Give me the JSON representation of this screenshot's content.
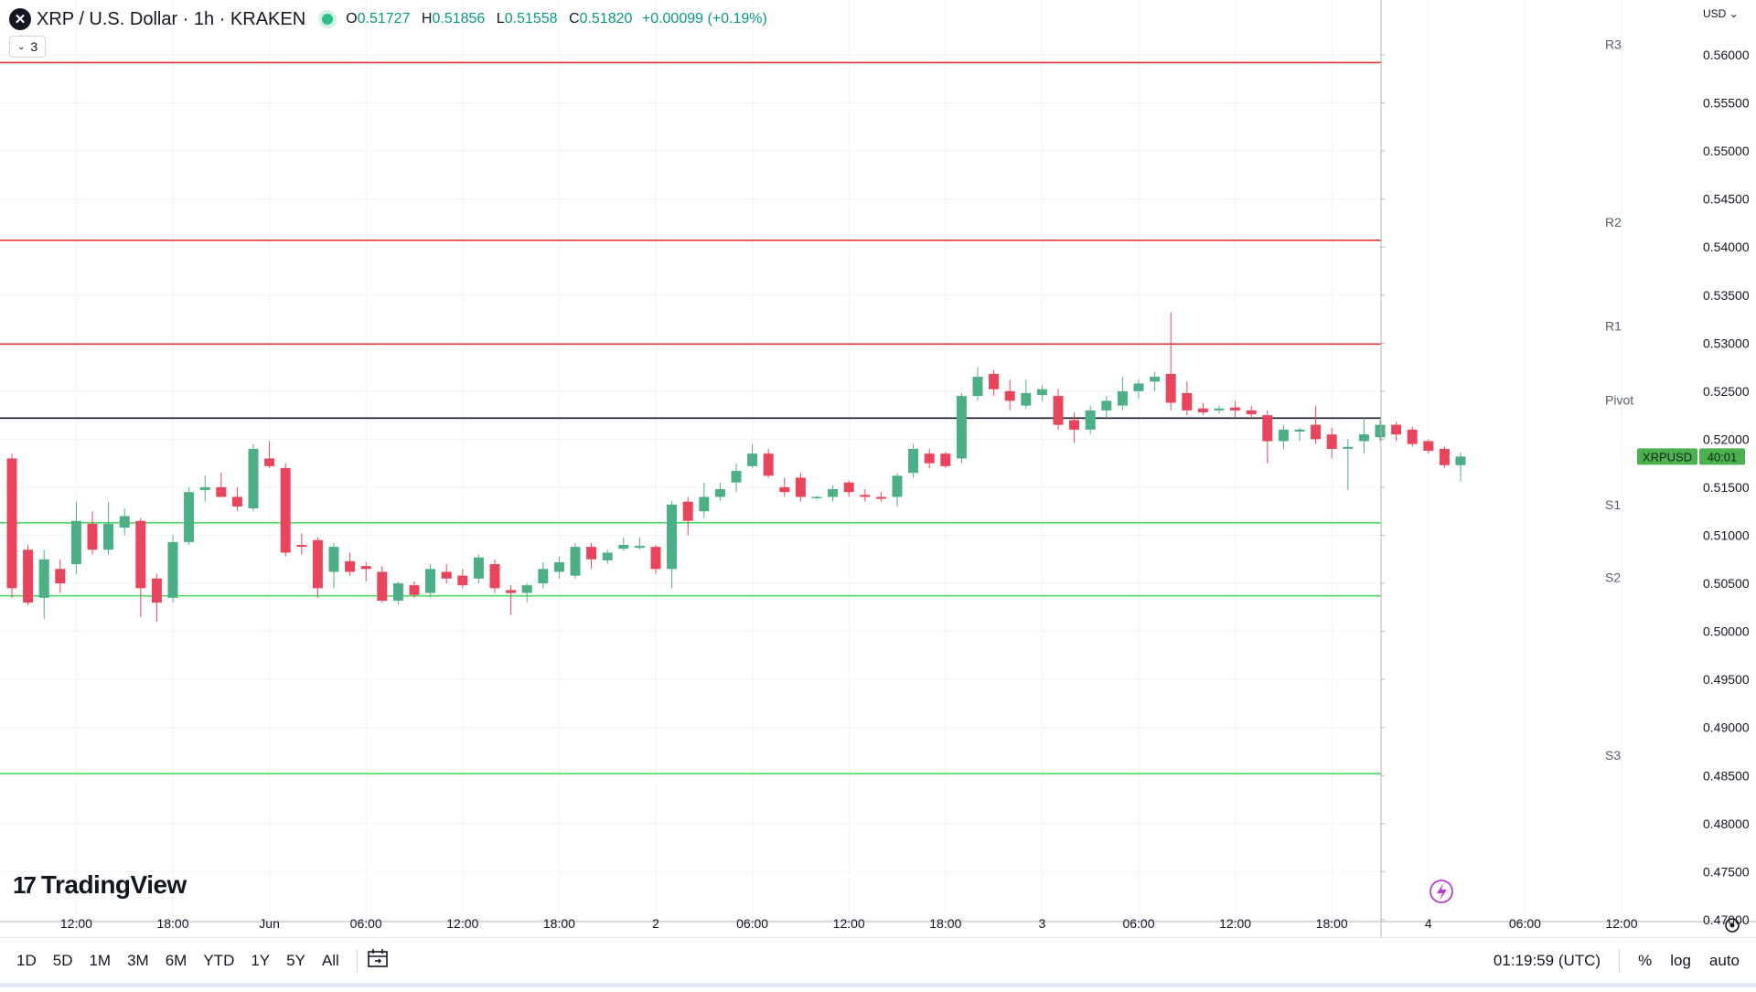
{
  "header": {
    "symbol_icon": "x-mark-icon",
    "title": "XRP / U.S. Dollar · 1h · KRAKEN",
    "open_label": "O",
    "open": "0.51727",
    "high_label": "H",
    "high": "0.51856",
    "low_label": "L",
    "low": "0.51558",
    "close_label": "C",
    "close": "0.51820",
    "change": "+0.00099 (+0.19%)",
    "indicators_count": "3"
  },
  "price_scale": {
    "currency": "USD"
  },
  "colors": {
    "up": "#4caf85",
    "down": "#e8455d",
    "resistance": "#e53935",
    "support": "#4cd964",
    "pivot": "#131722",
    "price_label_bg": "#4caf50",
    "grid": "#f0f3fa",
    "axis_text": "#131722"
  },
  "branding": {
    "logo_mark": "17",
    "logo_text": "TradingView"
  },
  "bottom_toolbar": {
    "timeframes": [
      "1D",
      "5D",
      "1M",
      "3M",
      "6M",
      "YTD",
      "1Y",
      "5Y",
      "All"
    ],
    "compare_icon": "calendar-range-icon",
    "clock": "01:19:59 (UTC)",
    "percent": "%",
    "log": "log",
    "auto": "auto"
  },
  "chart_data": {
    "type": "candlestick",
    "title": "XRP / U.S. Dollar · 1h · KRAKEN",
    "y_axis": {
      "ylim": [
        0.4698,
        0.56571
      ],
      "ticks": [
        "0.56000",
        "0.55500",
        "0.55000",
        "0.54500",
        "0.54000",
        "0.53500",
        "0.53000",
        "0.52500",
        "0.52000",
        "0.51500",
        "0.51000",
        "0.50500",
        "0.50000",
        "0.49500",
        "0.49000",
        "0.48500",
        "0.48000",
        "0.47500",
        "0.47000"
      ]
    },
    "x_axis": {
      "ticks": [
        {
          "label": "12:00",
          "bar": 4
        },
        {
          "label": "18:00",
          "bar": 10
        },
        {
          "label": "Jun",
          "bar": 16
        },
        {
          "label": "06:00",
          "bar": 22
        },
        {
          "label": "12:00",
          "bar": 28
        },
        {
          "label": "18:00",
          "bar": 34
        },
        {
          "label": "2",
          "bar": 40
        },
        {
          "label": "06:00",
          "bar": 46
        },
        {
          "label": "12:00",
          "bar": 52
        },
        {
          "label": "18:00",
          "bar": 58
        },
        {
          "label": "3",
          "bar": 64
        },
        {
          "label": "06:00",
          "bar": 70
        },
        {
          "label": "12:00",
          "bar": 76
        },
        {
          "label": "18:00",
          "bar": 82
        },
        {
          "label": "4",
          "bar": 88
        },
        {
          "label": "06:00",
          "bar": 94
        },
        {
          "label": "12:00",
          "bar": 100
        }
      ],
      "total_bars": 105
    },
    "levels": [
      {
        "name": "R3",
        "value": 0.5592,
        "kind": "resistance"
      },
      {
        "name": "R2",
        "value": 0.5407,
        "kind": "resistance"
      },
      {
        "name": "R1",
        "value": 0.5299,
        "kind": "resistance"
      },
      {
        "name": "Pivot",
        "value": 0.5222,
        "kind": "pivot"
      },
      {
        "name": "S1",
        "value": 0.5113,
        "kind": "support"
      },
      {
        "name": "S2",
        "value": 0.5037,
        "kind": "support"
      },
      {
        "name": "S3",
        "value": 0.4852,
        "kind": "support"
      }
    ],
    "candles": [
      {
        "o": 0.518,
        "h": 0.5185,
        "l": 0.5035,
        "c": 0.5045
      },
      {
        "o": 0.5085,
        "h": 0.509,
        "l": 0.5027,
        "c": 0.503
      },
      {
        "o": 0.5035,
        "h": 0.5085,
        "l": 0.5013,
        "c": 0.5075
      },
      {
        "o": 0.5065,
        "h": 0.5075,
        "l": 0.504,
        "c": 0.505
      },
      {
        "o": 0.507,
        "h": 0.5135,
        "l": 0.506,
        "c": 0.5115
      },
      {
        "o": 0.5112,
        "h": 0.5125,
        "l": 0.508,
        "c": 0.5085
      },
      {
        "o": 0.5085,
        "h": 0.5135,
        "l": 0.508,
        "c": 0.5112
      },
      {
        "o": 0.5108,
        "h": 0.5128,
        "l": 0.51,
        "c": 0.512
      },
      {
        "o": 0.5115,
        "h": 0.5118,
        "l": 0.5015,
        "c": 0.5045
      },
      {
        "o": 0.5055,
        "h": 0.506,
        "l": 0.501,
        "c": 0.503
      },
      {
        "o": 0.5035,
        "h": 0.51,
        "l": 0.503,
        "c": 0.5093
      },
      {
        "o": 0.5093,
        "h": 0.515,
        "l": 0.509,
        "c": 0.5145
      },
      {
        "o": 0.5147,
        "h": 0.5162,
        "l": 0.5135,
        "c": 0.515
      },
      {
        "o": 0.515,
        "h": 0.5165,
        "l": 0.514,
        "c": 0.514
      },
      {
        "o": 0.514,
        "h": 0.515,
        "l": 0.5125,
        "c": 0.513
      },
      {
        "o": 0.5128,
        "h": 0.5195,
        "l": 0.5125,
        "c": 0.519
      },
      {
        "o": 0.518,
        "h": 0.5198,
        "l": 0.517,
        "c": 0.5172
      },
      {
        "o": 0.517,
        "h": 0.5175,
        "l": 0.5078,
        "c": 0.5082
      },
      {
        "o": 0.509,
        "h": 0.5102,
        "l": 0.508,
        "c": 0.5088
      },
      {
        "o": 0.5095,
        "h": 0.5098,
        "l": 0.5035,
        "c": 0.5045
      },
      {
        "o": 0.5062,
        "h": 0.5092,
        "l": 0.5045,
        "c": 0.5088
      },
      {
        "o": 0.5073,
        "h": 0.5082,
        "l": 0.5058,
        "c": 0.5062
      },
      {
        "o": 0.5068,
        "h": 0.5072,
        "l": 0.5052,
        "c": 0.5065
      },
      {
        "o": 0.5062,
        "h": 0.5068,
        "l": 0.503,
        "c": 0.5032
      },
      {
        "o": 0.5032,
        "h": 0.5052,
        "l": 0.5028,
        "c": 0.505
      },
      {
        "o": 0.5048,
        "h": 0.5052,
        "l": 0.5035,
        "c": 0.5038
      },
      {
        "o": 0.504,
        "h": 0.507,
        "l": 0.5035,
        "c": 0.5065
      },
      {
        "o": 0.5062,
        "h": 0.507,
        "l": 0.505,
        "c": 0.5055
      },
      {
        "o": 0.5058,
        "h": 0.5065,
        "l": 0.5045,
        "c": 0.5048
      },
      {
        "o": 0.5055,
        "h": 0.508,
        "l": 0.505,
        "c": 0.5077
      },
      {
        "o": 0.507,
        "h": 0.5075,
        "l": 0.504,
        "c": 0.5045
      },
      {
        "o": 0.5043,
        "h": 0.5048,
        "l": 0.5017,
        "c": 0.504
      },
      {
        "o": 0.504,
        "h": 0.505,
        "l": 0.503,
        "c": 0.5048
      },
      {
        "o": 0.505,
        "h": 0.5072,
        "l": 0.5045,
        "c": 0.5065
      },
      {
        "o": 0.5062,
        "h": 0.5078,
        "l": 0.5055,
        "c": 0.5072
      },
      {
        "o": 0.5058,
        "h": 0.5092,
        "l": 0.5055,
        "c": 0.5088
      },
      {
        "o": 0.5088,
        "h": 0.5092,
        "l": 0.5065,
        "c": 0.5075
      },
      {
        "o": 0.5074,
        "h": 0.5085,
        "l": 0.507,
        "c": 0.5082
      },
      {
        "o": 0.5086,
        "h": 0.5098,
        "l": 0.5084,
        "c": 0.509
      },
      {
        "o": 0.5087,
        "h": 0.5098,
        "l": 0.5085,
        "c": 0.5089
      },
      {
        "o": 0.5088,
        "h": 0.509,
        "l": 0.506,
        "c": 0.5065
      },
      {
        "o": 0.5065,
        "h": 0.5136,
        "l": 0.5045,
        "c": 0.5132
      },
      {
        "o": 0.5135,
        "h": 0.514,
        "l": 0.51,
        "c": 0.5115
      },
      {
        "o": 0.5125,
        "h": 0.5155,
        "l": 0.5118,
        "c": 0.514
      },
      {
        "o": 0.514,
        "h": 0.5155,
        "l": 0.5136,
        "c": 0.5148
      },
      {
        "o": 0.5155,
        "h": 0.5175,
        "l": 0.5145,
        "c": 0.5167
      },
      {
        "o": 0.5172,
        "h": 0.5195,
        "l": 0.517,
        "c": 0.5185
      },
      {
        "o": 0.5185,
        "h": 0.519,
        "l": 0.516,
        "c": 0.5162
      },
      {
        "o": 0.515,
        "h": 0.516,
        "l": 0.514,
        "c": 0.5145
      },
      {
        "o": 0.516,
        "h": 0.5165,
        "l": 0.5135,
        "c": 0.514
      },
      {
        "o": 0.5139,
        "h": 0.5141,
        "l": 0.5137,
        "c": 0.514
      },
      {
        "o": 0.514,
        "h": 0.5152,
        "l": 0.5135,
        "c": 0.5148
      },
      {
        "o": 0.5155,
        "h": 0.5157,
        "l": 0.514,
        "c": 0.5145
      },
      {
        "o": 0.5142,
        "h": 0.5148,
        "l": 0.5135,
        "c": 0.514
      },
      {
        "o": 0.514,
        "h": 0.5145,
        "l": 0.5135,
        "c": 0.5138
      },
      {
        "o": 0.514,
        "h": 0.5165,
        "l": 0.513,
        "c": 0.5162
      },
      {
        "o": 0.5165,
        "h": 0.5195,
        "l": 0.516,
        "c": 0.519
      },
      {
        "o": 0.5185,
        "h": 0.519,
        "l": 0.517,
        "c": 0.5175
      },
      {
        "o": 0.5185,
        "h": 0.5187,
        "l": 0.517,
        "c": 0.5172
      },
      {
        "o": 0.518,
        "h": 0.5248,
        "l": 0.5175,
        "c": 0.5245
      },
      {
        "o": 0.5245,
        "h": 0.5275,
        "l": 0.524,
        "c": 0.5265
      },
      {
        "o": 0.5268,
        "h": 0.5272,
        "l": 0.5245,
        "c": 0.5252
      },
      {
        "o": 0.525,
        "h": 0.5262,
        "l": 0.523,
        "c": 0.524
      },
      {
        "o": 0.5235,
        "h": 0.5262,
        "l": 0.5232,
        "c": 0.5248
      },
      {
        "o": 0.5246,
        "h": 0.5256,
        "l": 0.524,
        "c": 0.5252
      },
      {
        "o": 0.5245,
        "h": 0.5252,
        "l": 0.521,
        "c": 0.5215
      },
      {
        "o": 0.522,
        "h": 0.5228,
        "l": 0.5196,
        "c": 0.521
      },
      {
        "o": 0.521,
        "h": 0.5235,
        "l": 0.5205,
        "c": 0.523
      },
      {
        "o": 0.523,
        "h": 0.5245,
        "l": 0.5222,
        "c": 0.524
      },
      {
        "o": 0.5235,
        "h": 0.5265,
        "l": 0.523,
        "c": 0.525
      },
      {
        "o": 0.525,
        "h": 0.5262,
        "l": 0.5242,
        "c": 0.5258
      },
      {
        "o": 0.526,
        "h": 0.527,
        "l": 0.525,
        "c": 0.5265
      },
      {
        "o": 0.5268,
        "h": 0.5332,
        "l": 0.523,
        "c": 0.5238
      },
      {
        "o": 0.5248,
        "h": 0.526,
        "l": 0.5225,
        "c": 0.523
      },
      {
        "o": 0.5232,
        "h": 0.5238,
        "l": 0.5225,
        "c": 0.5228
      },
      {
        "o": 0.523,
        "h": 0.5235,
        "l": 0.5227,
        "c": 0.5232
      },
      {
        "o": 0.5233,
        "h": 0.524,
        "l": 0.5222,
        "c": 0.523
      },
      {
        "o": 0.523,
        "h": 0.5235,
        "l": 0.5222,
        "c": 0.5226
      },
      {
        "o": 0.5225,
        "h": 0.523,
        "l": 0.5175,
        "c": 0.5198
      },
      {
        "o": 0.5198,
        "h": 0.5215,
        "l": 0.519,
        "c": 0.521
      },
      {
        "o": 0.5208,
        "h": 0.5212,
        "l": 0.5198,
        "c": 0.521
      },
      {
        "o": 0.5215,
        "h": 0.5235,
        "l": 0.5195,
        "c": 0.52
      },
      {
        "o": 0.5205,
        "h": 0.5212,
        "l": 0.518,
        "c": 0.519
      },
      {
        "o": 0.519,
        "h": 0.52,
        "l": 0.5147,
        "c": 0.5192
      },
      {
        "o": 0.5198,
        "h": 0.5222,
        "l": 0.5185,
        "c": 0.5205
      },
      {
        "o": 0.5202,
        "h": 0.522,
        "l": 0.5198,
        "c": 0.5215
      },
      {
        "o": 0.5215,
        "h": 0.5218,
        "l": 0.5198,
        "c": 0.5205
      },
      {
        "o": 0.521,
        "h": 0.5213,
        "l": 0.5192,
        "c": 0.5195
      },
      {
        "o": 0.5198,
        "h": 0.52,
        "l": 0.5185,
        "c": 0.5188
      },
      {
        "o": 0.519,
        "h": 0.5192,
        "l": 0.517,
        "c": 0.5173
      },
      {
        "o": 0.5173,
        "h": 0.5186,
        "l": 0.5156,
        "c": 0.5182
      }
    ],
    "last_price": {
      "symbol": "XRPUSD",
      "value": 0.5182,
      "countdown": "40:01"
    }
  }
}
